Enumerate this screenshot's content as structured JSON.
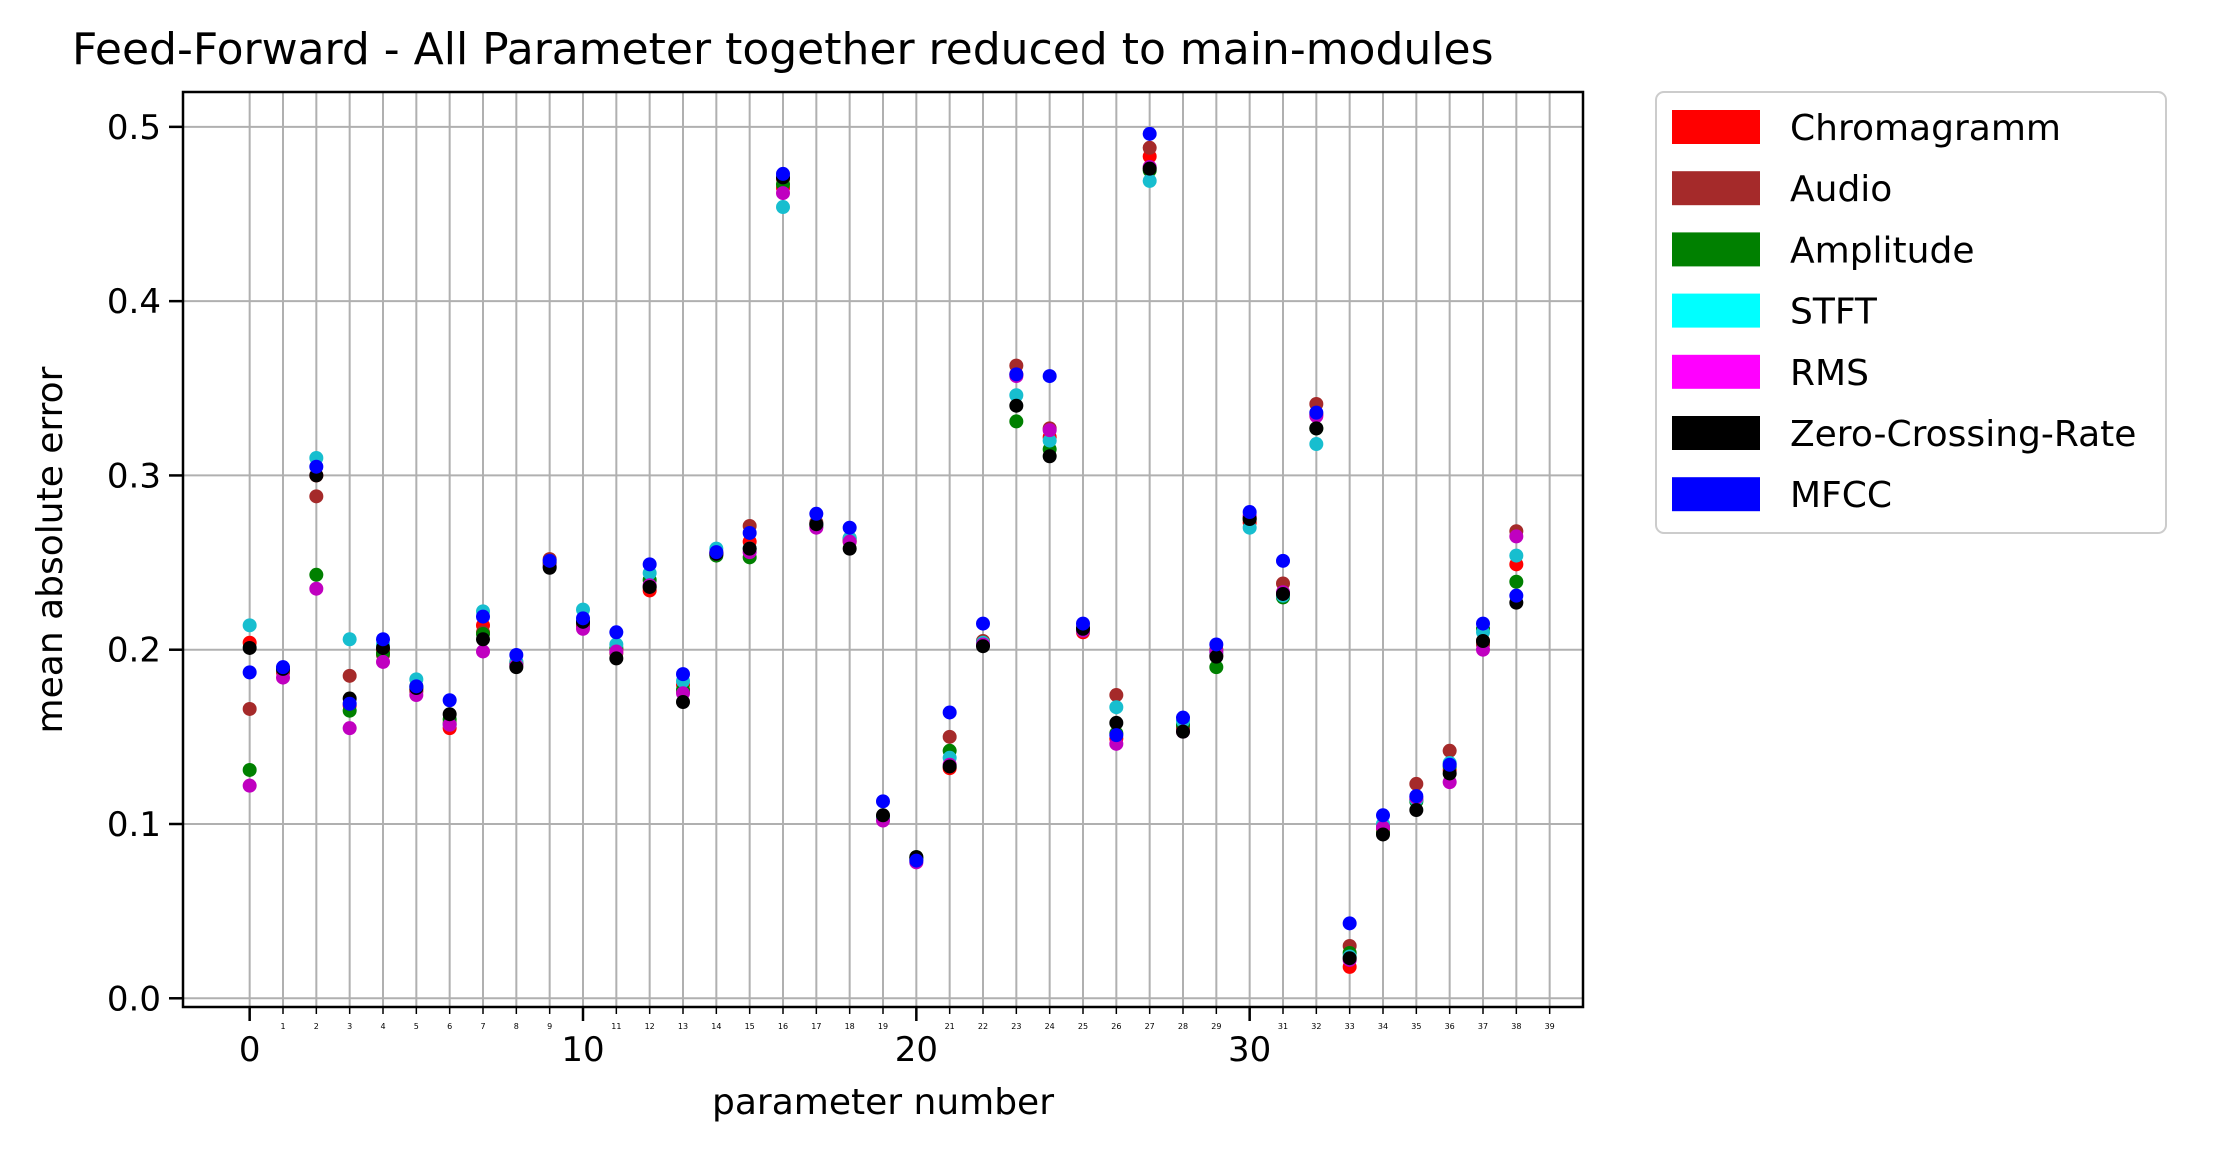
{
  "chart_data": {
    "type": "scatter",
    "title": "Feed-Forward - All Parameter together reduced to main-modules",
    "xlabel": "parameter number",
    "ylabel": "mean absolute error",
    "xlim": [
      -2,
      40
    ],
    "ylim": [
      -0.005,
      0.52
    ],
    "major_xticks": [
      0,
      10,
      20,
      30
    ],
    "minor_xticks": [
      1,
      2,
      3,
      4,
      5,
      6,
      7,
      8,
      9,
      11,
      12,
      13,
      14,
      15,
      16,
      17,
      18,
      19,
      21,
      22,
      23,
      24,
      25,
      26,
      27,
      28,
      29,
      31,
      32,
      33,
      34,
      35,
      36,
      37,
      38,
      39
    ],
    "yticks": [
      0.0,
      0.1,
      0.2,
      0.3,
      0.4,
      0.5
    ],
    "ytick_labels": [
      "0.0",
      "0.1",
      "0.2",
      "0.3",
      "0.4",
      "0.5"
    ],
    "grid": true,
    "legend_position": "outside-right-top",
    "x": [
      0,
      1,
      2,
      3,
      4,
      5,
      6,
      7,
      8,
      9,
      10,
      11,
      12,
      13,
      14,
      15,
      16,
      17,
      18,
      19,
      20,
      21,
      22,
      23,
      24,
      25,
      26,
      27,
      28,
      29,
      30,
      31,
      32,
      33,
      34,
      35,
      36,
      37,
      38
    ],
    "series": [
      {
        "name": "Chromagramm",
        "color": "#ff0000",
        "marker_color": "#ff0000",
        "values": [
          0.204,
          0.187,
          0.3,
          0.168,
          0.2,
          0.177,
          0.155,
          0.214,
          0.192,
          0.25,
          0.214,
          0.2,
          0.234,
          0.18,
          0.256,
          0.262,
          0.465,
          0.272,
          0.262,
          0.103,
          0.08,
          0.132,
          0.203,
          0.358,
          0.322,
          0.21,
          0.149,
          0.483,
          0.155,
          0.197,
          0.273,
          0.232,
          0.335,
          0.018,
          0.097,
          0.114,
          0.131,
          0.205,
          0.249
        ]
      },
      {
        "name": "Audio",
        "color": "#a52a2a",
        "marker_color": "#a52a2a",
        "values": [
          0.166,
          0.188,
          0.288,
          0.185,
          0.197,
          0.176,
          0.158,
          0.21,
          0.193,
          0.252,
          0.214,
          0.198,
          0.236,
          0.176,
          0.255,
          0.271,
          0.47,
          0.273,
          0.264,
          0.104,
          0.08,
          0.15,
          0.205,
          0.363,
          0.327,
          0.213,
          0.174,
          0.488,
          0.156,
          0.2,
          0.276,
          0.238,
          0.341,
          0.03,
          0.099,
          0.123,
          0.142,
          0.203,
          0.268
        ]
      },
      {
        "name": "Amplitude",
        "color": "#008000",
        "marker_color": "#008000",
        "values": [
          0.131,
          0.189,
          0.243,
          0.165,
          0.198,
          0.179,
          0.16,
          0.209,
          0.192,
          0.249,
          0.216,
          0.201,
          0.24,
          0.177,
          0.254,
          0.253,
          0.467,
          0.271,
          0.263,
          0.104,
          0.081,
          0.142,
          0.204,
          0.331,
          0.315,
          0.212,
          0.152,
          0.475,
          0.157,
          0.19,
          0.275,
          0.23,
          0.327,
          0.026,
          0.095,
          0.113,
          0.133,
          0.212,
          0.239
        ]
      },
      {
        "name": "STFT",
        "color": "#00ffff",
        "marker_color": "#17becf",
        "values": [
          0.214,
          0.189,
          0.31,
          0.206,
          0.203,
          0.183,
          0.157,
          0.222,
          0.193,
          0.248,
          0.223,
          0.203,
          0.244,
          0.182,
          0.258,
          0.258,
          0.454,
          0.272,
          0.264,
          0.103,
          0.08,
          0.138,
          0.204,
          0.346,
          0.32,
          0.211,
          0.167,
          0.469,
          0.159,
          0.198,
          0.27,
          0.231,
          0.318,
          0.024,
          0.1,
          0.114,
          0.135,
          0.21,
          0.254
        ]
      },
      {
        "name": "RMS",
        "color": "#ff00ff",
        "marker_color": "#c000c0",
        "values": [
          0.122,
          0.184,
          0.235,
          0.155,
          0.193,
          0.174,
          0.157,
          0.199,
          0.191,
          0.248,
          0.212,
          0.199,
          0.237,
          0.175,
          0.255,
          0.256,
          0.462,
          0.27,
          0.262,
          0.102,
          0.078,
          0.134,
          0.203,
          0.357,
          0.326,
          0.211,
          0.146,
          0.477,
          0.153,
          0.199,
          0.277,
          0.233,
          0.334,
          0.022,
          0.098,
          0.115,
          0.124,
          0.2,
          0.265
        ]
      },
      {
        "name": "Zero-Crossing-Rate",
        "color": "#000000",
        "marker_color": "#000000",
        "values": [
          0.201,
          0.189,
          0.3,
          0.172,
          0.201,
          0.178,
          0.163,
          0.206,
          0.19,
          0.247,
          0.216,
          0.195,
          0.236,
          0.17,
          0.255,
          0.258,
          0.471,
          0.272,
          0.258,
          0.105,
          0.081,
          0.133,
          0.202,
          0.34,
          0.311,
          0.212,
          0.158,
          0.476,
          0.153,
          0.196,
          0.275,
          0.232,
          0.327,
          0.023,
          0.094,
          0.108,
          0.129,
          0.205,
          0.227
        ]
      },
      {
        "name": "MFCC",
        "color": "#0000ff",
        "marker_color": "#0000ff",
        "values": [
          0.187,
          0.19,
          0.305,
          0.169,
          0.206,
          0.179,
          0.171,
          0.219,
          0.197,
          0.251,
          0.218,
          0.21,
          0.249,
          0.186,
          0.256,
          0.267,
          0.473,
          0.278,
          0.27,
          0.113,
          0.079,
          0.164,
          0.215,
          0.358,
          0.357,
          0.215,
          0.151,
          0.496,
          0.161,
          0.203,
          0.279,
          0.251,
          0.336,
          0.043,
          0.105,
          0.116,
          0.134,
          0.215,
          0.231
        ]
      }
    ]
  }
}
